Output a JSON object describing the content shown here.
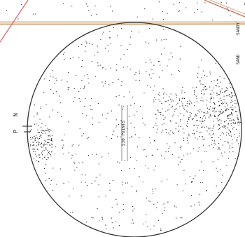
{
  "diagram": {
    "center_label": "530 POINTS",
    "north_label": "N",
    "pole_label": "P",
    "edge_label_1": "SANDY",
    "edge_label_2": "SAND"
  },
  "colors": {
    "background": "#ffffff",
    "ink": "#222222",
    "circle_stroke": "#333333",
    "top_band": "#e6c9a6",
    "red_line": "#e06060",
    "sepia_line": "#c7745a"
  }
}
